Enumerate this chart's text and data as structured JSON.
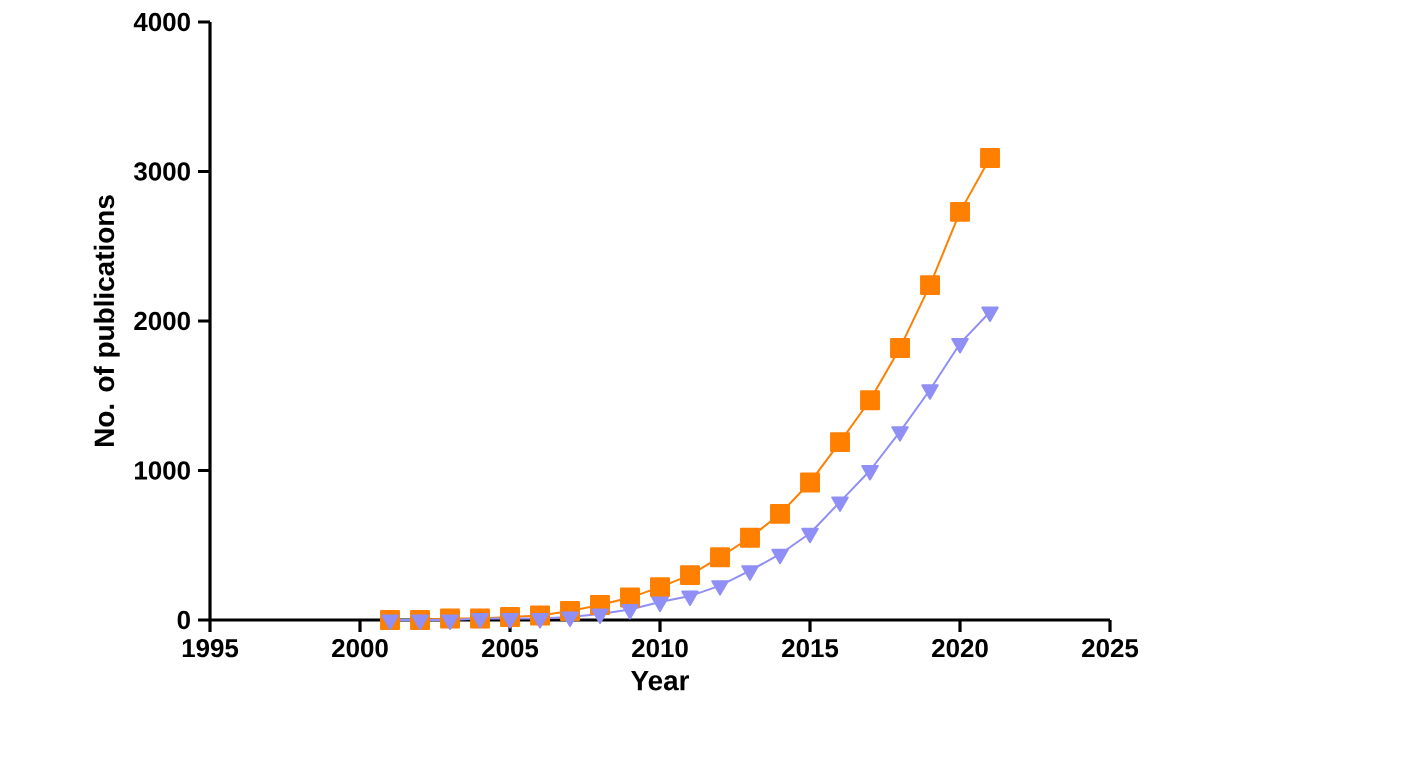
{
  "chart_data": {
    "type": "line",
    "xlabel": "Year",
    "ylabel": "No. of publications",
    "x": [
      2001,
      2002,
      2003,
      2004,
      2005,
      2006,
      2007,
      2008,
      2009,
      2010,
      2011,
      2012,
      2013,
      2014,
      2015,
      2016,
      2017,
      2018,
      2019,
      2020,
      2021
    ],
    "series": [
      {
        "color": "#8f8ff5",
        "marker": "triangle",
        "values": [
          0,
          0,
          0,
          10,
          10,
          10,
          20,
          40,
          70,
          120,
          160,
          230,
          330,
          440,
          580,
          790,
          1000,
          1260,
          1540,
          1850,
          2060
        ]
      },
      {
        "color": "#ff7f00",
        "marker": "square",
        "values": [
          0,
          0,
          10,
          10,
          20,
          30,
          60,
          100,
          150,
          220,
          300,
          420,
          550,
          710,
          920,
          1190,
          1470,
          1820,
          2240,
          2730,
          3090
        ]
      }
    ],
    "xlim": [
      1995,
      2025
    ],
    "xticks": [
      1995,
      2000,
      2005,
      2010,
      2015,
      2020,
      2025
    ],
    "ylim": [
      0,
      4000
    ],
    "yticks": [
      0,
      1000,
      2000,
      3000,
      4000
    ],
    "grid": false,
    "line_style": "solid"
  }
}
